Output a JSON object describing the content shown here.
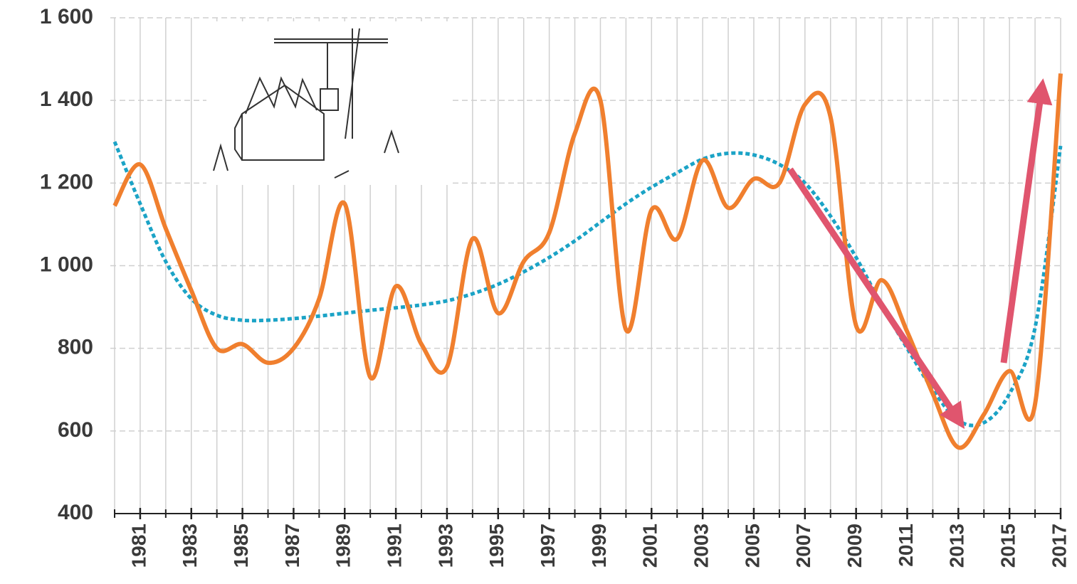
{
  "chart_data": {
    "type": "line",
    "x": [
      1980,
      1981,
      1982,
      1983,
      1984,
      1985,
      1986,
      1987,
      1988,
      1989,
      1990,
      1991,
      1992,
      1993,
      1994,
      1995,
      1996,
      1997,
      1998,
      1999,
      2000,
      2001,
      2002,
      2003,
      2004,
      2005,
      2006,
      2007,
      2008,
      2009,
      2010,
      2011,
      2012,
      2013,
      2014,
      2015,
      2016,
      2017
    ],
    "series": [
      {
        "color": "#f07f2e",
        "style": "solid",
        "values": [
          1145,
          1245,
          1090,
          940,
          800,
          810,
          765,
          800,
          920,
          1150,
          730,
          950,
          810,
          755,
          1065,
          885,
          1010,
          1080,
          1320,
          1400,
          845,
          1135,
          1065,
          1255,
          1140,
          1210,
          1200,
          1390,
          1360,
          855,
          965,
          840,
          690,
          560,
          640,
          745,
          665,
          1465
        ]
      },
      {
        "color": "#1ba3c6",
        "style": "dotted",
        "values": [
          1300,
          1150,
          1010,
          920,
          880,
          868,
          868,
          872,
          878,
          885,
          892,
          898,
          905,
          915,
          932,
          955,
          985,
          1020,
          1060,
          1105,
          1150,
          1190,
          1225,
          1258,
          1272,
          1268,
          1245,
          1200,
          1120,
          1020,
          905,
          800,
          700,
          625,
          620,
          690,
          850,
          1290
        ]
      }
    ],
    "xlim": [
      1980,
      2017
    ],
    "xticks": [
      1981,
      1983,
      1985,
      1987,
      1989,
      1991,
      1993,
      1995,
      1997,
      1999,
      2001,
      2003,
      2005,
      2007,
      2009,
      2011,
      2013,
      2015,
      2017
    ],
    "ylim": [
      400,
      1600
    ],
    "yticks": [
      {
        "value": 400,
        "label": "400"
      },
      600,
      800,
      {
        "value": 1000,
        "label": "1 000"
      },
      {
        "value": 1200,
        "label": "1 200"
      },
      {
        "value": 1400,
        "label": "1 400"
      },
      {
        "value": 1600,
        "label": "1 600"
      }
    ],
    "grid": true
  }
}
